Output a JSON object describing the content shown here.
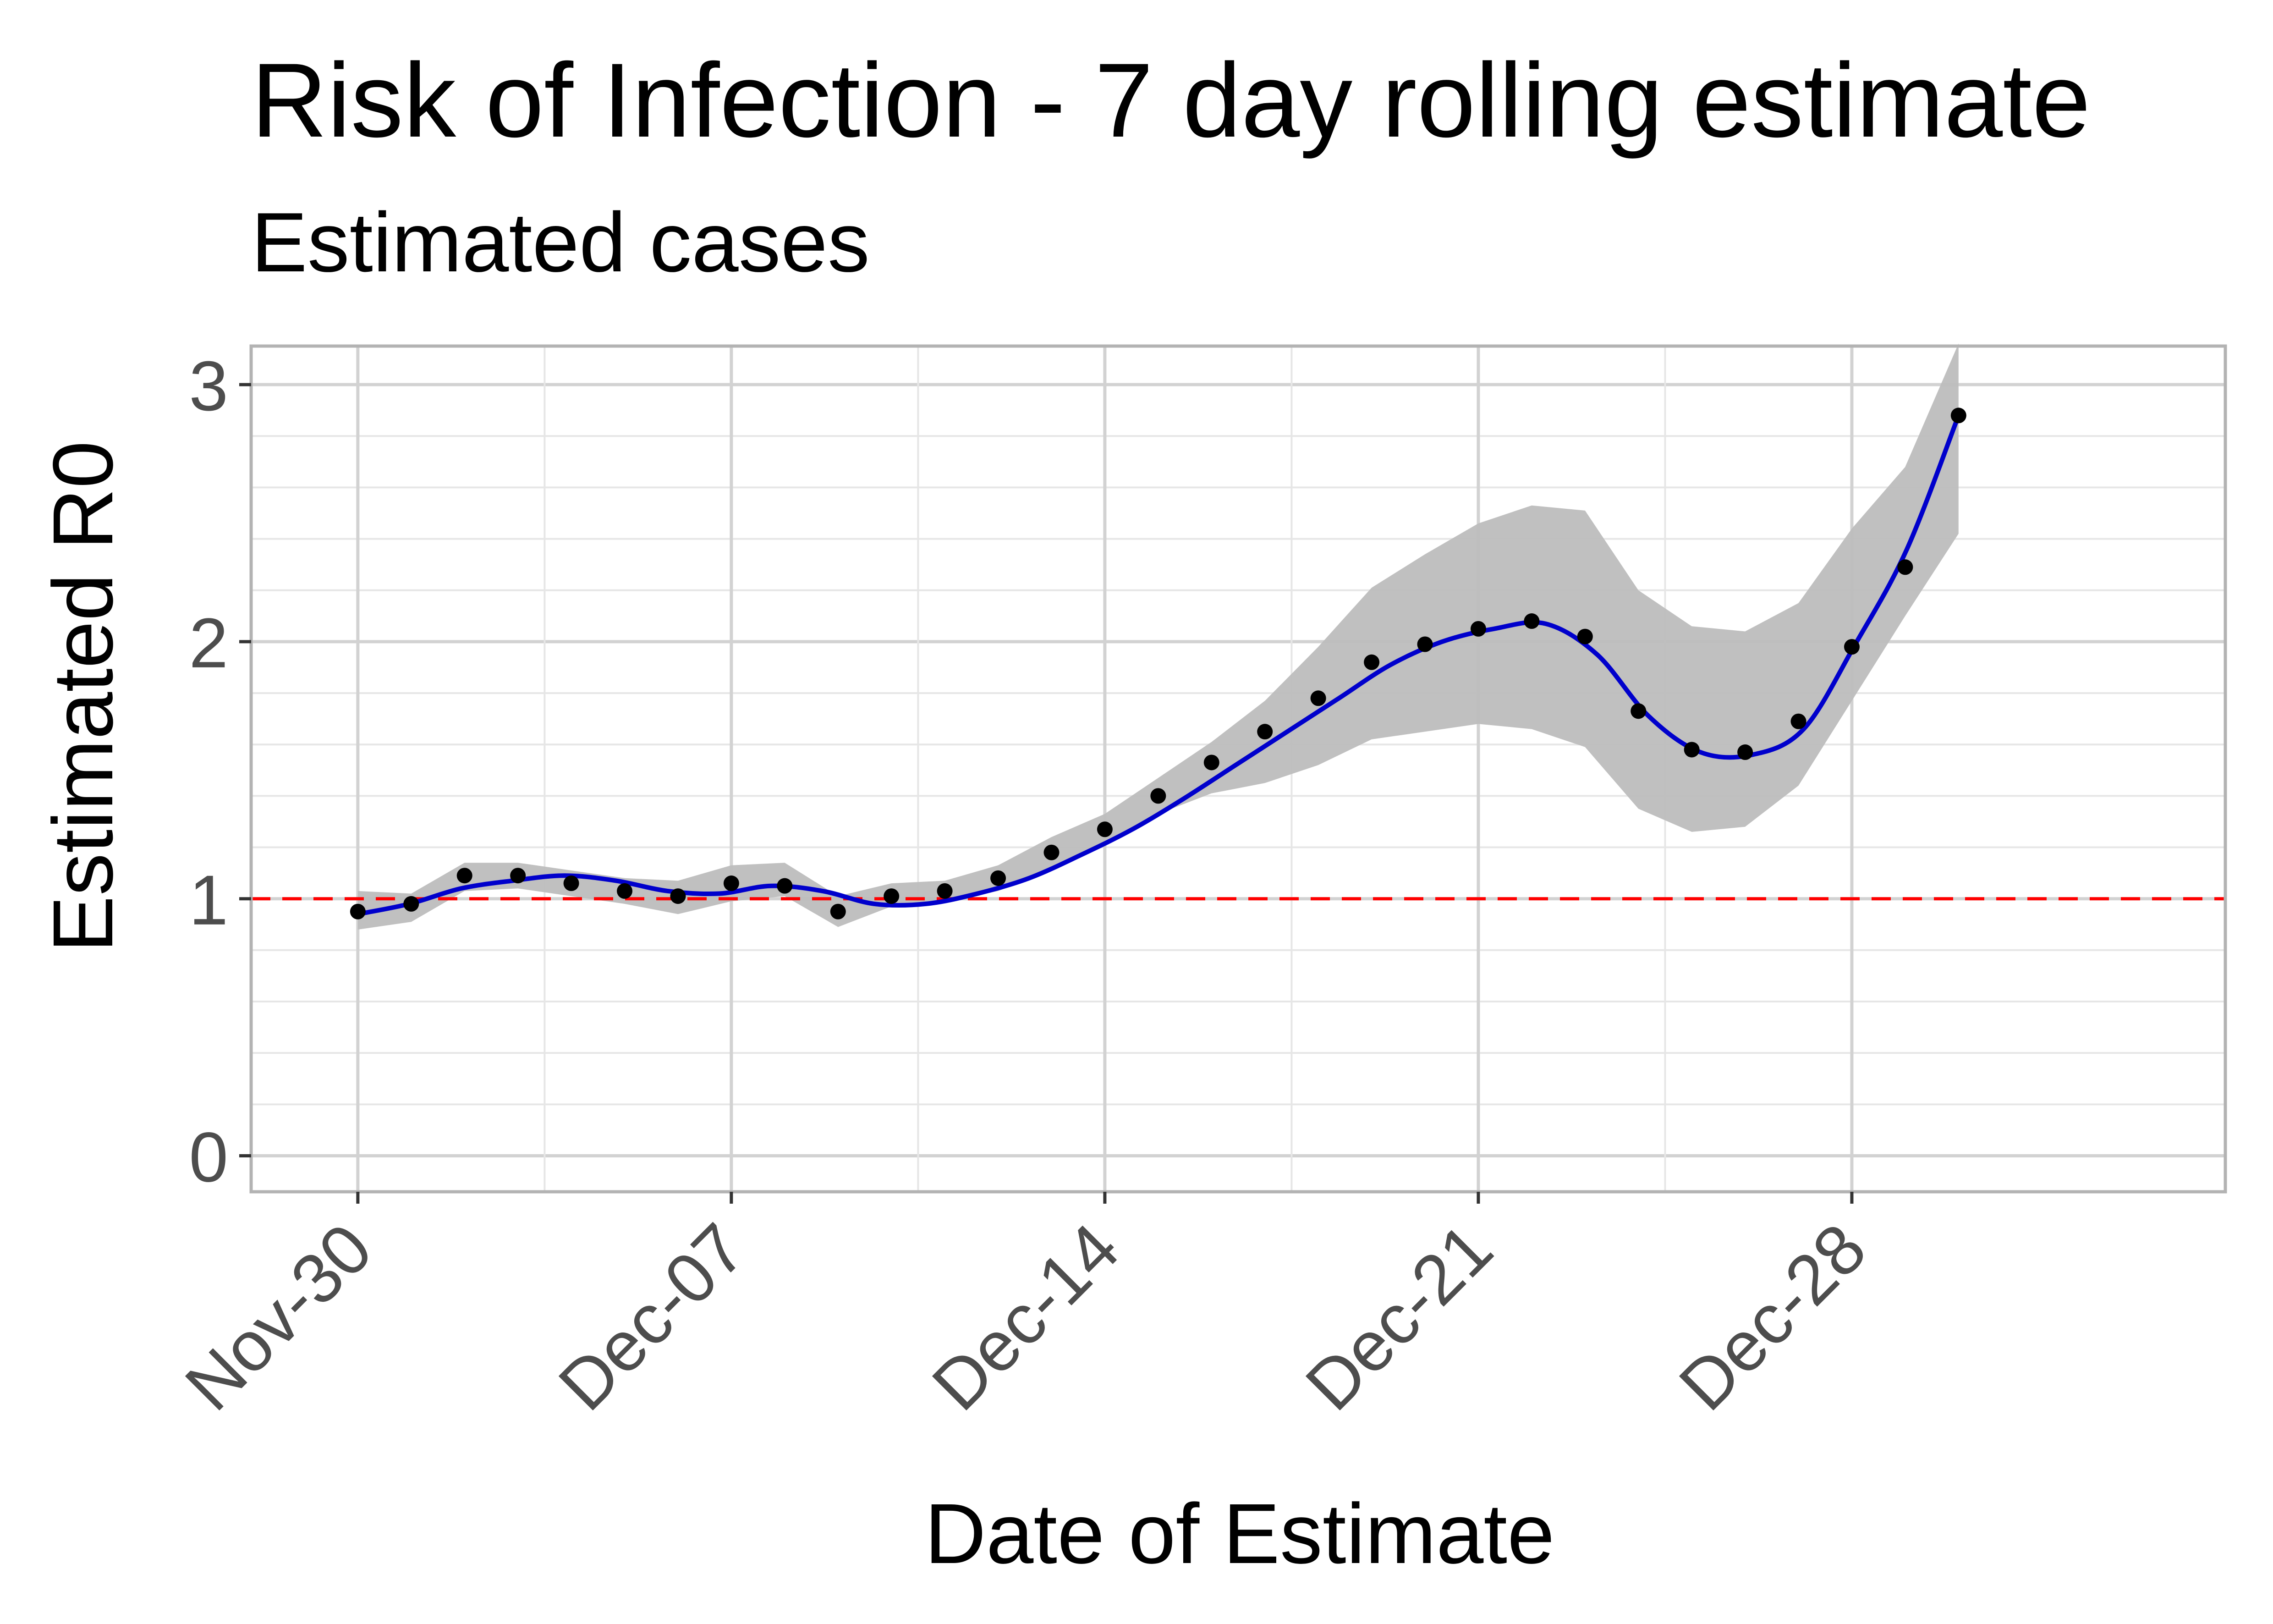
{
  "chart_data": {
    "type": "line",
    "title": "Risk of Infection - 7 day rolling estimate",
    "subtitle": "Estimated cases",
    "xlabel": "Date of Estimate",
    "ylabel": "Estimated R0",
    "ylim": [
      -0.14,
      3.15
    ],
    "y_ticks": [
      0,
      1,
      2,
      3
    ],
    "y_tick_labels": [
      "0",
      "1",
      "2",
      "3"
    ],
    "x_ticks": [
      "2020-11-30",
      "2020-12-07",
      "2020-12-14",
      "2020-12-21",
      "2020-12-28"
    ],
    "x_tick_labels": [
      "Nov-30",
      "Dec-07",
      "Dec-14",
      "Dec-21",
      "Dec-28"
    ],
    "xlim": [
      "2020-11-28",
      "2021-01-04"
    ],
    "grid": true,
    "reference_line": {
      "y": 1,
      "color": "#ff0000",
      "style": "dashed"
    },
    "colors": {
      "smooth": "#0000cc",
      "band": "#bdbdbd",
      "points": "#000000",
      "grid": "#dcdcdc",
      "panel_border": "#b3b3b3"
    },
    "series": [
      {
        "type": "scatter",
        "x": [
          "2020-11-30",
          "2020-12-01",
          "2020-12-02",
          "2020-12-03",
          "2020-12-04",
          "2020-12-05",
          "2020-12-06",
          "2020-12-07",
          "2020-12-08",
          "2020-12-09",
          "2020-12-10",
          "2020-12-11",
          "2020-12-12",
          "2020-12-13",
          "2020-12-14",
          "2020-12-15",
          "2020-12-16",
          "2020-12-17",
          "2020-12-18",
          "2020-12-19",
          "2020-12-20",
          "2020-12-21",
          "2020-12-22",
          "2020-12-23",
          "2020-12-24",
          "2020-12-25",
          "2020-12-26",
          "2020-12-27",
          "2020-12-28",
          "2020-12-29",
          "2020-12-30"
        ],
        "values": [
          0.95,
          0.98,
          1.09,
          1.09,
          1.06,
          1.03,
          1.01,
          1.06,
          1.05,
          0.95,
          1.01,
          1.03,
          1.08,
          1.18,
          1.27,
          1.4,
          1.53,
          1.65,
          1.78,
          1.92,
          1.99,
          2.05,
          2.08,
          2.02,
          1.73,
          1.58,
          1.57,
          1.69,
          1.98,
          2.29,
          2.88
        ]
      },
      {
        "type": "smooth",
        "values": [
          0.94,
          0.98,
          1.04,
          1.07,
          1.09,
          1.07,
          1.03,
          1.02,
          1.05,
          1.03,
          0.98,
          0.98,
          1.02,
          1.08,
          1.17,
          1.27,
          1.39,
          1.52,
          1.65,
          1.78,
          1.91,
          2.0,
          2.05,
          2.07,
          1.95,
          1.71,
          1.57,
          1.56,
          1.66,
          1.99,
          2.36,
          2.88
        ]
      }
    ],
    "band": {
      "x": [
        "2020-11-30",
        "2020-12-01",
        "2020-12-02",
        "2020-12-03",
        "2020-12-04",
        "2020-12-05",
        "2020-12-06",
        "2020-12-07",
        "2020-12-08",
        "2020-12-09",
        "2020-12-10",
        "2020-12-11",
        "2020-12-12",
        "2020-12-13",
        "2020-12-14",
        "2020-12-15",
        "2020-12-16",
        "2020-12-17",
        "2020-12-18",
        "2020-12-19",
        "2020-12-20",
        "2020-12-21",
        "2020-12-22",
        "2020-12-23",
        "2020-12-24",
        "2020-12-25",
        "2020-12-26",
        "2020-12-27",
        "2020-12-28",
        "2020-12-29",
        "2020-12-30"
      ],
      "upper": [
        1.03,
        1.02,
        1.14,
        1.14,
        1.11,
        1.08,
        1.07,
        1.13,
        1.14,
        1.01,
        1.06,
        1.07,
        1.13,
        1.24,
        1.33,
        1.47,
        1.61,
        1.77,
        1.98,
        2.21,
        2.34,
        2.46,
        2.53,
        2.51,
        2.2,
        2.06,
        2.04,
        2.15,
        2.44,
        2.68,
        3.16
      ],
      "lower": [
        0.88,
        0.91,
        1.03,
        1.04,
        1.01,
        0.98,
        0.94,
        0.99,
        1.01,
        0.89,
        0.97,
        0.99,
        1.03,
        1.11,
        1.21,
        1.33,
        1.41,
        1.45,
        1.52,
        1.62,
        1.65,
        1.68,
        1.66,
        1.59,
        1.35,
        1.26,
        1.28,
        1.44,
        1.77,
        2.1,
        2.42
      ]
    }
  }
}
